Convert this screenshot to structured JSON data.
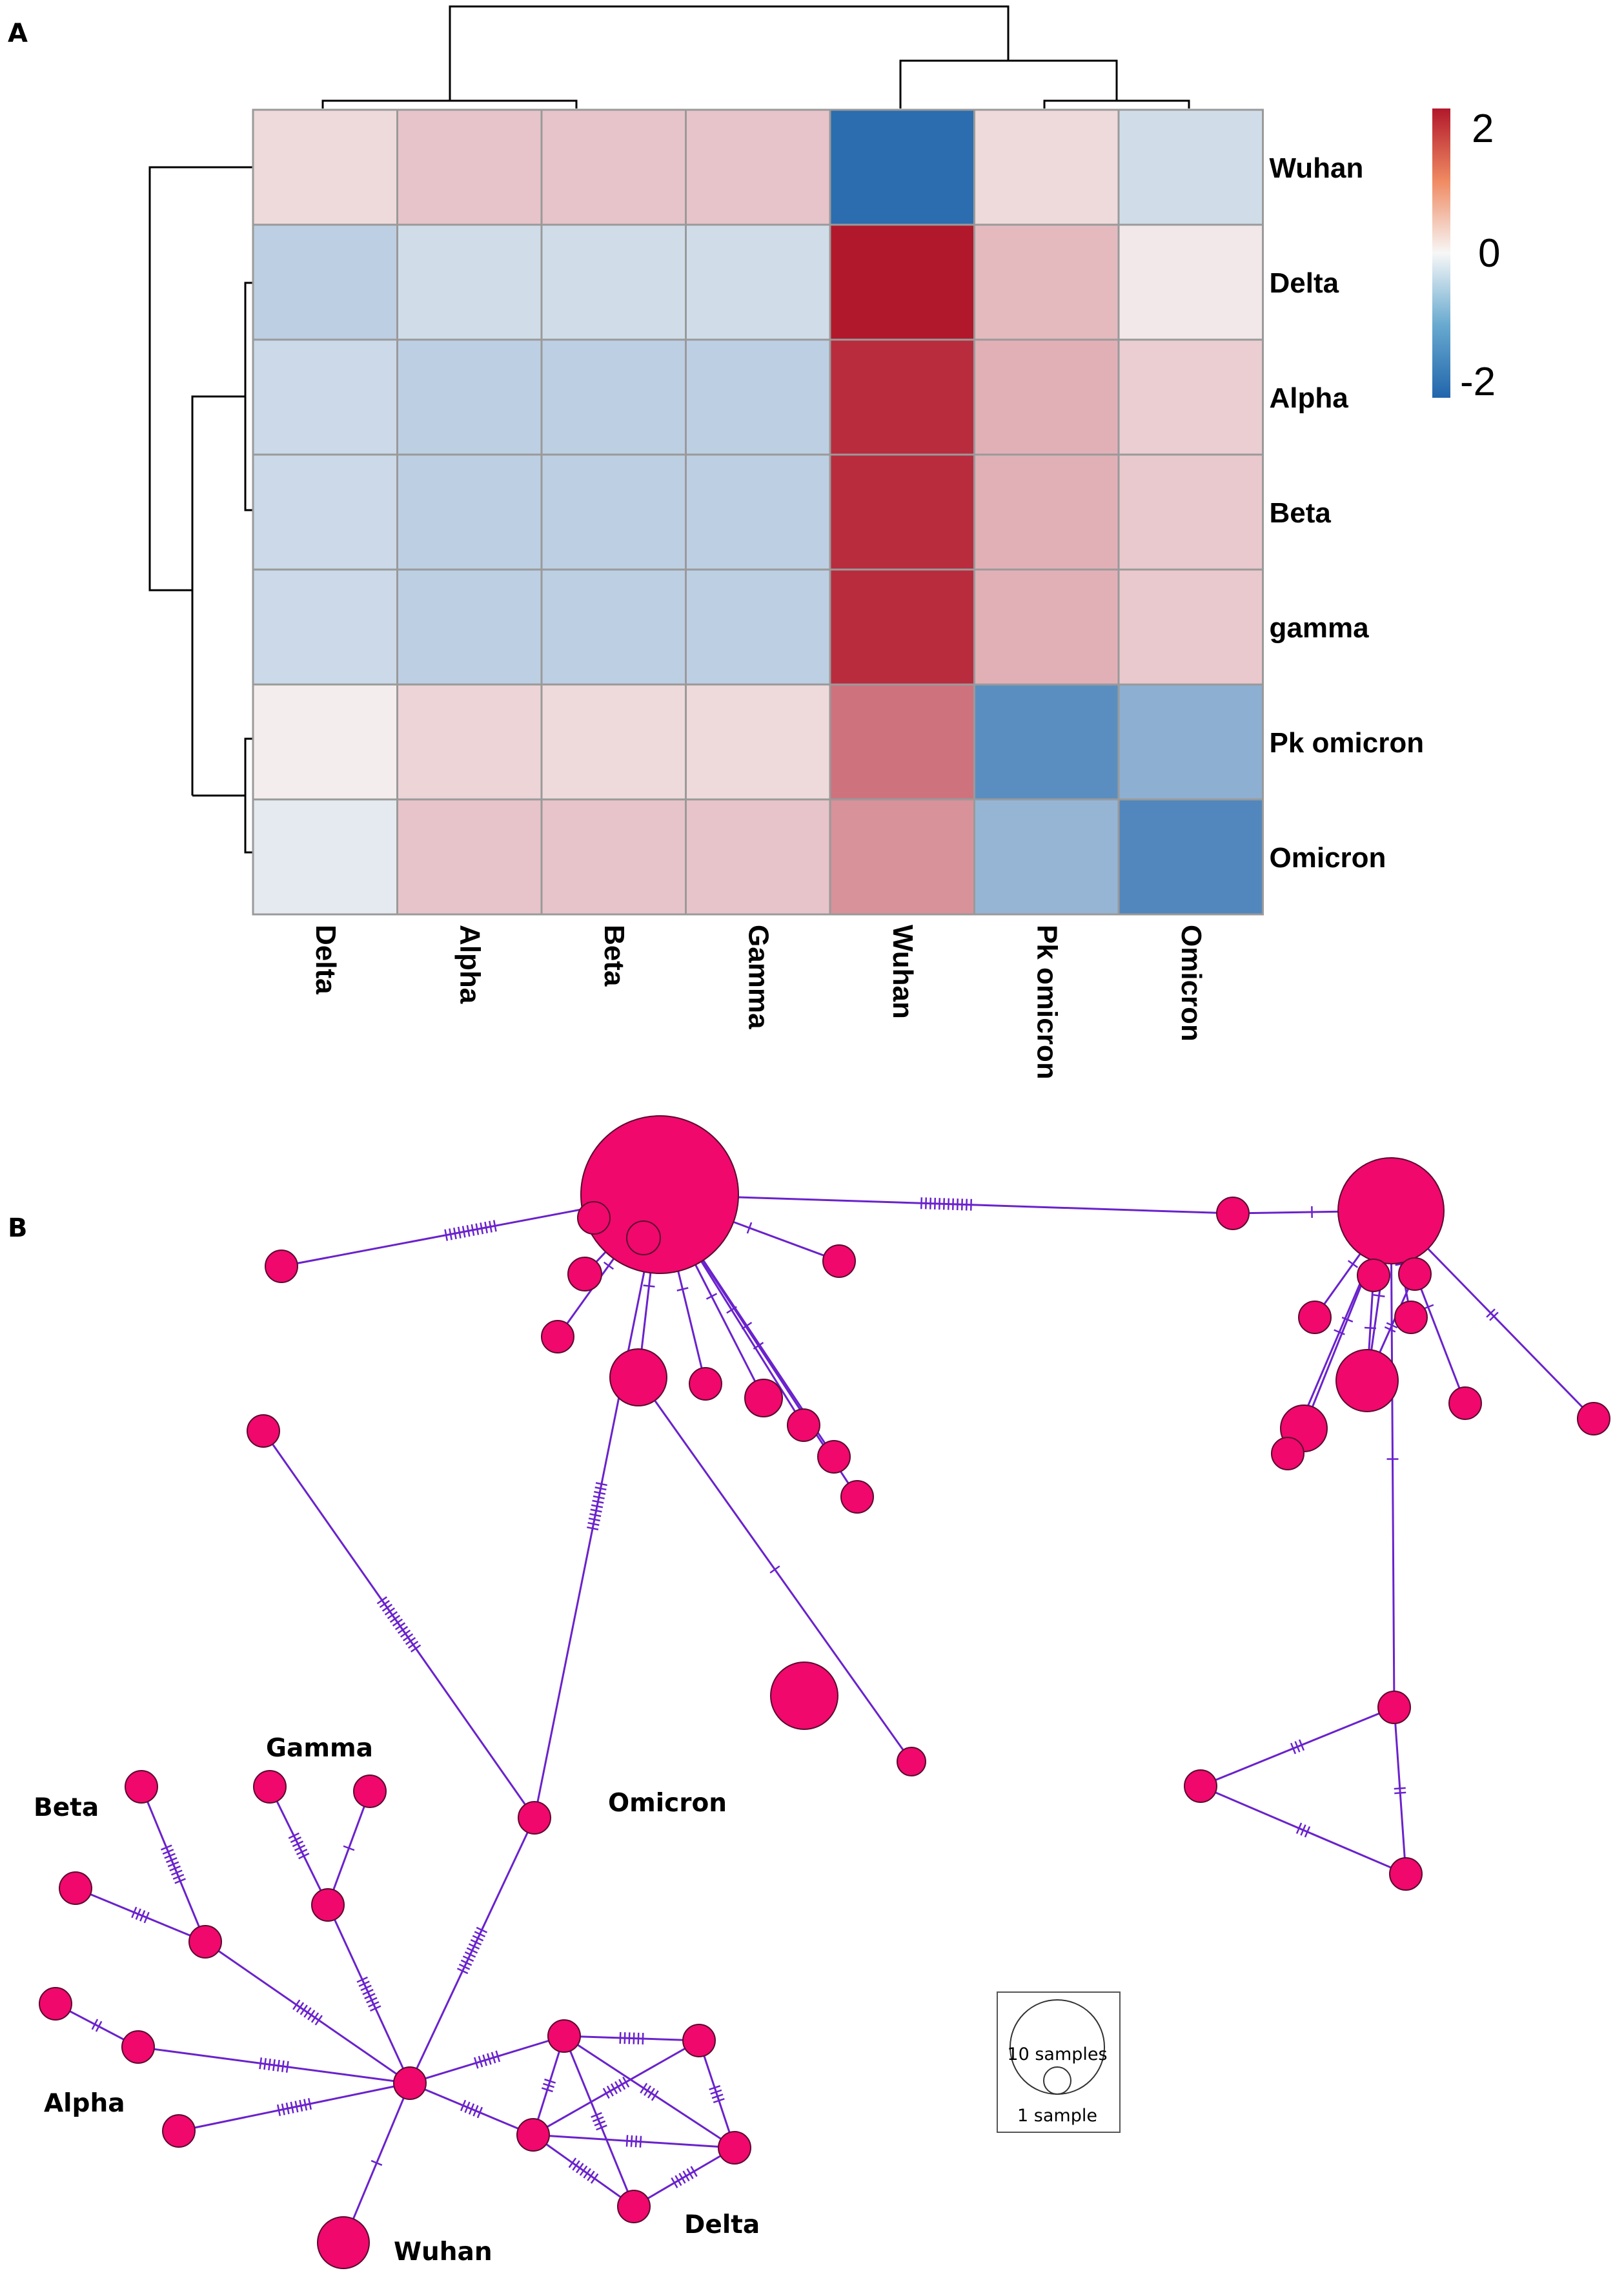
{
  "panel_a": {
    "letter": "A",
    "heatmap": {
      "rows": [
        "Wuhan",
        "Delta",
        "Alpha",
        "Beta",
        "gamma",
        "Pk omicron",
        "Omicron"
      ],
      "columns": [
        "Delta",
        "Alpha",
        "Beta",
        "Gamma",
        "Wuhan",
        "Pk omicron",
        "Omicron"
      ],
      "values": [
        [
          0.3,
          0.5,
          0.5,
          0.5,
          -2.1,
          0.3,
          -0.4
        ],
        [
          -0.6,
          -0.4,
          -0.4,
          -0.4,
          2.2,
          0.6,
          0.15
        ],
        [
          -0.45,
          -0.6,
          -0.6,
          -0.6,
          2.0,
          0.7,
          0.4
        ],
        [
          -0.45,
          -0.6,
          -0.6,
          -0.6,
          2.0,
          0.7,
          0.45
        ],
        [
          -0.45,
          -0.6,
          -0.6,
          -0.6,
          2.0,
          0.7,
          0.45
        ],
        [
          0.1,
          0.35,
          0.3,
          0.3,
          1.3,
          -1.6,
          -1.1
        ],
        [
          -0.2,
          0.5,
          0.5,
          0.5,
          1.0,
          -1.0,
          -1.7
        ]
      ]
    },
    "legend": {
      "ticks": [
        "2",
        "0",
        "-2"
      ],
      "colors": {
        "high": "#b2182b",
        "mid": "#f7f7f7",
        "low": "#2166ac"
      }
    }
  },
  "panel_b": {
    "letter": "B",
    "labels": {
      "gamma": "Gamma",
      "beta": "Beta",
      "alpha": "Alpha",
      "omicron": "Omicron",
      "wuhan": "Wuhan",
      "delta": "Delta"
    },
    "scale": {
      "large": "10 samples",
      "small": "1 sample"
    },
    "colors": {
      "node": "#f0086c",
      "edge": "#6a22cc"
    }
  }
}
